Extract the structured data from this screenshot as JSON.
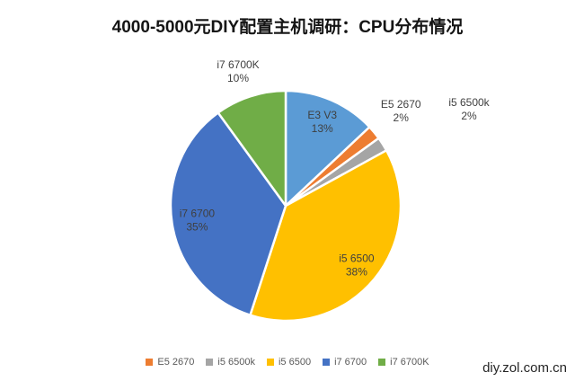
{
  "title": "4000-5000元DIY配置主机调研：CPU分布情况",
  "watermark": "diy.zol.com.cn",
  "chart_data": {
    "type": "pie",
    "title": "4000-5000元DIY配置主机调研：CPU分布情况",
    "start_angle": "12-o'clock",
    "direction": "clockwise",
    "units": "percent",
    "total": 100,
    "slices": [
      {
        "label": "E3 V3",
        "value": 13,
        "pct_label": "13%",
        "color": "#5B9BD5",
        "label_placement": "inside"
      },
      {
        "label": "E5 2670",
        "value": 2,
        "pct_label": "2%",
        "color": "#ED7D31",
        "label_placement": "outside"
      },
      {
        "label": "i5 6500k",
        "value": 2,
        "pct_label": "2%",
        "color": "#A5A5A5",
        "label_placement": "outside"
      },
      {
        "label": "i5 6500",
        "value": 38,
        "pct_label": "38%",
        "color": "#FFC000",
        "label_placement": "inside"
      },
      {
        "label": "i7 6700",
        "value": 35,
        "pct_label": "35%",
        "color": "#4472C4",
        "label_placement": "inside"
      },
      {
        "label": "i7 6700K",
        "value": 10,
        "pct_label": "10%",
        "color": "#70AD47",
        "label_placement": "outside"
      }
    ],
    "legend": {
      "position": "bottom",
      "items": [
        {
          "label": "E5 2670",
          "color": "#ED7D31"
        },
        {
          "label": "i5 6500k",
          "color": "#A5A5A5"
        },
        {
          "label": "i5 6500",
          "color": "#FFC000"
        },
        {
          "label": "i7 6700",
          "color": "#4472C4"
        },
        {
          "label": "i7 6700K",
          "color": "#70AD47"
        }
      ]
    },
    "slice_border_color": "#ffffff"
  }
}
